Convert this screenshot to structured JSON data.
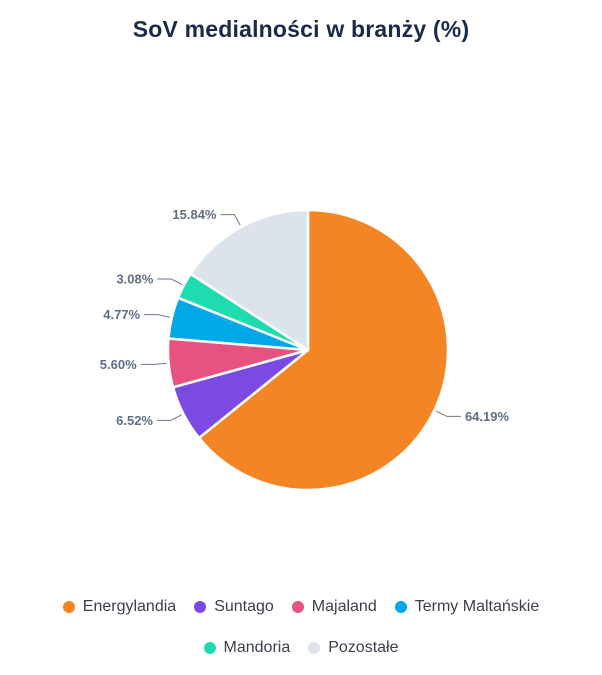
{
  "chart_data": {
    "type": "pie",
    "title": "SoV medialności w branży (%)",
    "categories": [
      "Energylandia",
      "Suntago",
      "Majaland",
      "Termy Maltańskie",
      "Mandoria",
      "Pozostałe"
    ],
    "values": [
      64.19,
      6.52,
      5.6,
      4.77,
      3.08,
      15.84
    ],
    "value_labels": [
      "64.19%",
      "6.52%",
      "5.60%",
      "4.77%",
      "3.08%",
      "15.84%"
    ],
    "colors": [
      "#f48524",
      "#7b4ae2",
      "#e8527f",
      "#00a8e8",
      "#1fdbb0",
      "#dde3ea"
    ],
    "legend_position": "bottom"
  }
}
